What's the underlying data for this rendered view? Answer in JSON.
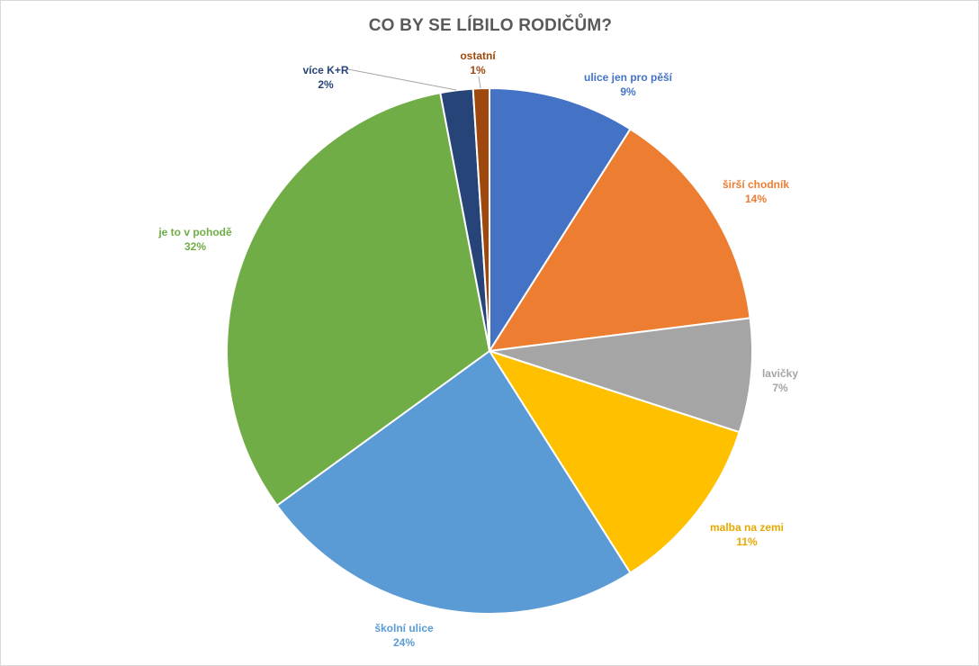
{
  "chart_data": {
    "type": "pie",
    "title": "CO BY SE LÍBILO RODIČŮM?",
    "slices": [
      {
        "label": "ulice jen pro pěší",
        "value": 9,
        "value_label": "9%",
        "color": "#4472C4",
        "label_color": "#4472C4"
      },
      {
        "label": "širší chodník",
        "value": 14,
        "value_label": "14%",
        "color": "#ED7D31",
        "label_color": "#ED7D31"
      },
      {
        "label": "lavičky",
        "value": 7,
        "value_label": "7%",
        "color": "#A5A5A5",
        "label_color": "#A5A5A5"
      },
      {
        "label": "malba na zemi",
        "value": 11,
        "value_label": "11%",
        "color": "#FFC000",
        "label_color": "#E6A800"
      },
      {
        "label": "školní ulice",
        "value": 24,
        "value_label": "24%",
        "color": "#5B9BD5",
        "label_color": "#5B9BD5"
      },
      {
        "label": "je to v pohodě",
        "value": 32,
        "value_label": "32%",
        "color": "#70AD47",
        "label_color": "#70AD47"
      },
      {
        "label": "více K+R",
        "value": 2,
        "value_label": "2%",
        "color": "#264478",
        "label_color": "#264478"
      },
      {
        "label": "ostatní",
        "value": 1,
        "value_label": "1%",
        "color": "#9E480E",
        "label_color": "#9E480E"
      }
    ]
  }
}
